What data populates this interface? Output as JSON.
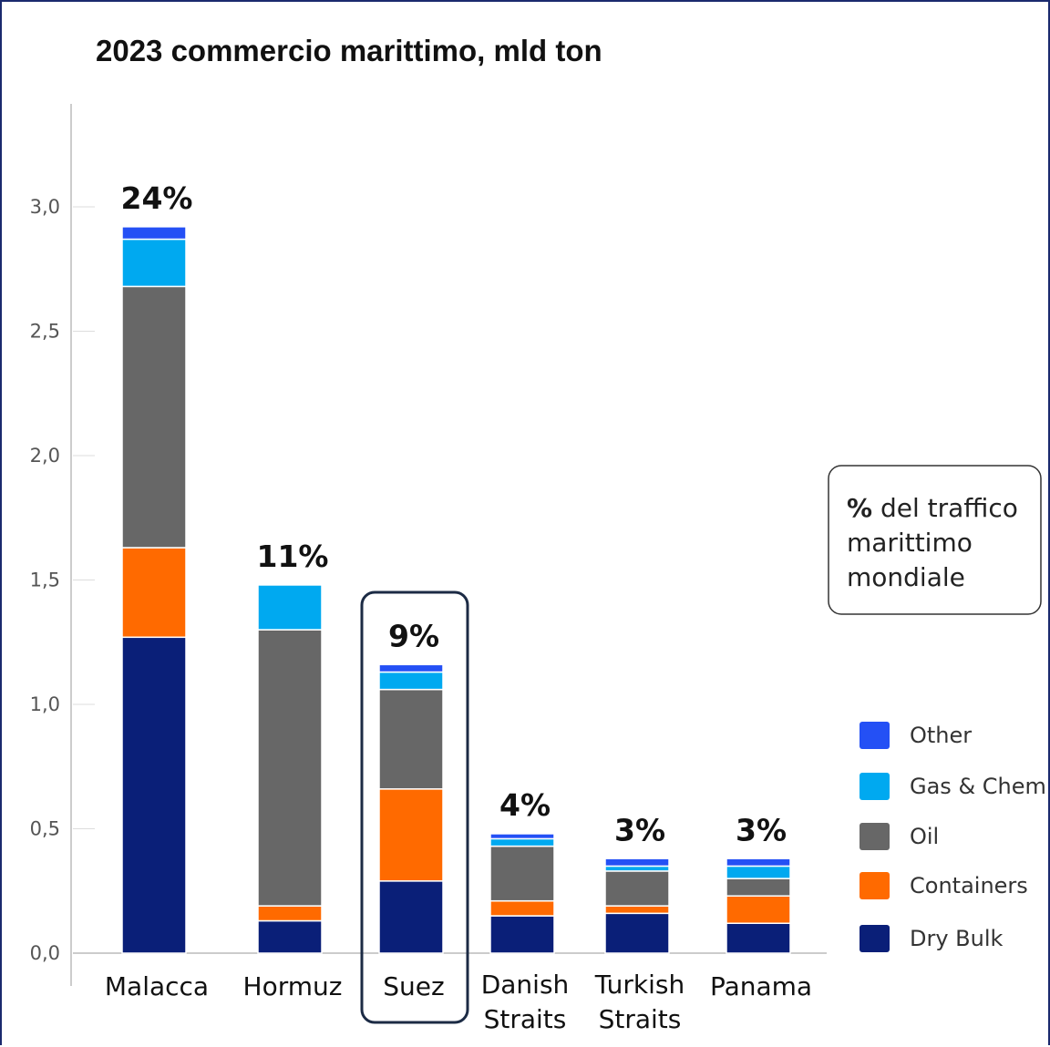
{
  "chart_data": {
    "type": "bar",
    "stacked": true,
    "title": "2023 commercio marittimo, mld ton",
    "ylim": [
      0,
      3.4
    ],
    "yticks": [
      {
        "value": 0,
        "label": "0,0"
      },
      {
        "value": 0.5,
        "label": "0,5"
      },
      {
        "value": 1.0,
        "label": "1,0"
      },
      {
        "value": 1.5,
        "label": "1,5"
      },
      {
        "value": 2.0,
        "label": "2,0"
      },
      {
        "value": 2.5,
        "label": "2,5"
      },
      {
        "value": 3.0,
        "label": "3,0"
      }
    ],
    "categories": [
      [
        "Malacca"
      ],
      [
        "Hormuz"
      ],
      [
        "Suez"
      ],
      [
        "Danish",
        "Straits"
      ],
      [
        "Turkish",
        "Straits"
      ],
      [
        "Panama"
      ]
    ],
    "share_labels": [
      "24%",
      "11%",
      "9%",
      "4%",
      "3%",
      "3%"
    ],
    "highlighted_category": 2,
    "series": [
      {
        "name": "Dry Bulk",
        "color": "#0a1f78",
        "values": [
          1.27,
          0.13,
          0.29,
          0.15,
          0.16,
          0.12
        ]
      },
      {
        "name": "Containers",
        "color": "#ff6a00",
        "values": [
          0.36,
          0.06,
          0.37,
          0.06,
          0.03,
          0.11
        ]
      },
      {
        "name": "Oil",
        "color": "#676767",
        "values": [
          1.05,
          1.11,
          0.4,
          0.22,
          0.14,
          0.07
        ]
      },
      {
        "name": "Gas & Chem",
        "color": "#00a9f0",
        "values": [
          0.19,
          0.18,
          0.07,
          0.03,
          0.02,
          0.05
        ]
      },
      {
        "name": "Other",
        "color": "#2450f5",
        "values": [
          0.05,
          0.0,
          0.03,
          0.02,
          0.03,
          0.03
        ]
      }
    ],
    "legend_order": [
      "Other",
      "Gas & Chem",
      "Oil",
      "Containers",
      "Dry Bulk"
    ],
    "legend_placement": "right",
    "note": {
      "bold": "%",
      "lines": [
        " del traffico",
        "marittimo",
        "mondiale"
      ]
    }
  }
}
